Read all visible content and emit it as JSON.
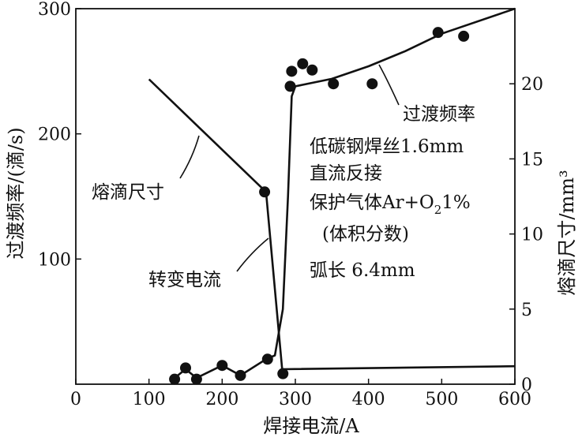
{
  "chart_data": {
    "type": "line",
    "xlabel": "焊接电流/A",
    "ylabel_left": "过渡频率/(滴/s)",
    "ylabel_right": "熔滴尺寸/mm³",
    "xlim": [
      0,
      600
    ],
    "ylim_left": [
      0,
      300
    ],
    "ylim_right": [
      0,
      25
    ],
    "x_ticks": [
      0,
      100,
      200,
      300,
      400,
      500,
      600
    ],
    "y_left_ticks": [
      100,
      200,
      300
    ],
    "y_right_ticks": [
      0,
      5,
      10,
      15,
      20
    ],
    "grid": false,
    "series": [
      {
        "name": "过渡频率",
        "axis": "left",
        "points": [
          [
            135,
            5
          ],
          [
            150,
            12
          ],
          [
            165,
            5
          ],
          [
            200,
            15
          ],
          [
            225,
            7
          ],
          [
            260,
            20
          ],
          [
            272,
            23
          ],
          [
            283,
            60
          ],
          [
            290,
            150
          ],
          [
            295,
            230
          ],
          [
            300,
            238
          ],
          [
            350,
            244
          ],
          [
            400,
            254
          ],
          [
            450,
            266
          ],
          [
            500,
            280
          ],
          [
            600,
            300
          ]
        ],
        "markers": [
          [
            135,
            4
          ],
          [
            150,
            13
          ],
          [
            165,
            4
          ],
          [
            200,
            15
          ],
          [
            225,
            7
          ],
          [
            262,
            20
          ],
          [
            293,
            238
          ],
          [
            295,
            250
          ],
          [
            310,
            256
          ],
          [
            323,
            251
          ],
          [
            352,
            240
          ],
          [
            405,
            240
          ],
          [
            495,
            281
          ],
          [
            530,
            278
          ]
        ]
      },
      {
        "name": "熔滴尺寸",
        "axis": "right",
        "points": [
          [
            100,
            20.3
          ],
          [
            260,
            12.8
          ],
          [
            282,
            1.0
          ],
          [
            600,
            1.2
          ]
        ],
        "markers": [
          [
            258,
            12.8
          ],
          [
            283,
            0.7
          ]
        ]
      }
    ],
    "annotations": {
      "freq_label": "过渡频率",
      "size_label": "熔滴尺寸",
      "transition_label": "转变电流",
      "cond_wire": "低碳钢焊丝1.6mm",
      "cond_dc": "直流反接",
      "cond_gas_prefix": "保护气体Ar+O",
      "cond_gas_sub": "2",
      "cond_gas_suffix": "1%",
      "cond_gas_note": "(体积分数)",
      "cond_arc": "弧长 6.4mm"
    },
    "colors": {
      "ink": "#111111"
    }
  }
}
